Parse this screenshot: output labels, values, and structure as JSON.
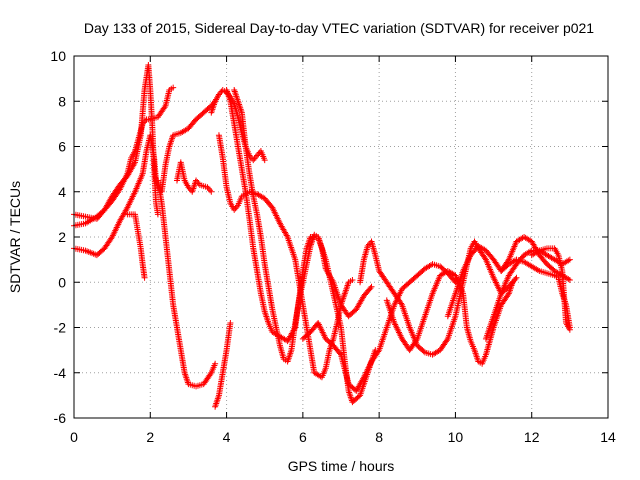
{
  "chart_data": {
    "type": "scatter",
    "title": "Day 133 of 2015, Sidereal Day-to-day VTEC variation (SDTVAR) for receiver p021",
    "xlabel": "GPS time / hours",
    "ylabel": "SDTVAR / TECUs",
    "xlim": [
      0,
      14
    ],
    "ylim": [
      -6,
      10
    ],
    "xticks": [
      0,
      2,
      4,
      6,
      8,
      10,
      12,
      14
    ],
    "yticks": [
      -6,
      -4,
      -2,
      0,
      2,
      4,
      6,
      8,
      10
    ],
    "grid": true,
    "legend": "none",
    "marker": "plus",
    "color": "#ff0000",
    "series": [
      {
        "points": [
          [
            0.0,
            3.0
          ],
          [
            0.3,
            2.9
          ],
          [
            0.6,
            2.8
          ],
          [
            0.8,
            3.2
          ],
          [
            1.0,
            3.8
          ],
          [
            1.2,
            4.3
          ],
          [
            1.4,
            4.7
          ],
          [
            1.6,
            5.3
          ],
          [
            1.75,
            6.5
          ],
          [
            1.85,
            8.5
          ],
          [
            1.95,
            9.6
          ],
          [
            2.0,
            8.5
          ],
          [
            2.05,
            7.0
          ],
          [
            2.1,
            5.0
          ],
          [
            2.15,
            3.5
          ],
          [
            2.2,
            3.0
          ]
        ]
      },
      {
        "points": [
          [
            0.0,
            2.5
          ],
          [
            0.3,
            2.6
          ],
          [
            0.6,
            2.9
          ],
          [
            0.8,
            3.2
          ],
          [
            1.0,
            3.6
          ],
          [
            1.2,
            4.1
          ],
          [
            1.4,
            4.8
          ],
          [
            1.5,
            5.5
          ],
          [
            1.6,
            5.8
          ],
          [
            1.7,
            6.4
          ],
          [
            1.8,
            7.0
          ],
          [
            1.9,
            7.2
          ],
          [
            2.0,
            7.2
          ],
          [
            2.2,
            7.3
          ],
          [
            2.4,
            7.8
          ],
          [
            2.5,
            8.5
          ],
          [
            2.6,
            8.6
          ]
        ]
      },
      {
        "points": [
          [
            0.0,
            1.5
          ],
          [
            0.3,
            1.4
          ],
          [
            0.6,
            1.2
          ],
          [
            0.8,
            1.5
          ],
          [
            1.0,
            2.0
          ],
          [
            1.2,
            2.7
          ],
          [
            1.4,
            3.3
          ],
          [
            1.6,
            4.0
          ],
          [
            1.8,
            4.8
          ],
          [
            1.9,
            5.8
          ],
          [
            2.0,
            6.5
          ],
          [
            2.1,
            5.5
          ],
          [
            2.15,
            4.5
          ],
          [
            2.2,
            4.2
          ],
          [
            2.3,
            4.0
          ],
          [
            2.4,
            5.2
          ],
          [
            2.5,
            6.0
          ],
          [
            2.6,
            6.5
          ],
          [
            2.8,
            6.6
          ],
          [
            3.0,
            6.8
          ],
          [
            3.2,
            7.2
          ],
          [
            3.4,
            7.5
          ],
          [
            3.6,
            7.8
          ],
          [
            3.7,
            8.0
          ]
        ]
      },
      {
        "points": [
          [
            1.4,
            3.0
          ],
          [
            1.5,
            3.0
          ],
          [
            1.6,
            3.0
          ],
          [
            1.65,
            2.5
          ],
          [
            1.7,
            2.0
          ],
          [
            1.75,
            1.5
          ],
          [
            1.8,
            0.8
          ],
          [
            1.85,
            0.2
          ]
        ]
      },
      {
        "points": [
          [
            2.2,
            4.5
          ],
          [
            2.3,
            3.5
          ],
          [
            2.4,
            2.0
          ],
          [
            2.5,
            0.5
          ],
          [
            2.6,
            -1.0
          ],
          [
            2.7,
            -2.0
          ],
          [
            2.8,
            -3.0
          ],
          [
            2.9,
            -4.0
          ],
          [
            3.0,
            -4.5
          ],
          [
            3.2,
            -4.6
          ],
          [
            3.4,
            -4.5
          ],
          [
            3.6,
            -4.0
          ],
          [
            3.7,
            -3.6
          ]
        ]
      },
      {
        "points": [
          [
            2.7,
            4.5
          ],
          [
            2.8,
            5.3
          ],
          [
            2.9,
            4.5
          ],
          [
            3.0,
            4.2
          ],
          [
            3.1,
            4.0
          ],
          [
            3.2,
            4.5
          ],
          [
            3.3,
            4.3
          ],
          [
            3.5,
            4.2
          ],
          [
            3.6,
            4.0
          ]
        ]
      },
      {
        "points": [
          [
            3.7,
            -5.5
          ],
          [
            3.8,
            -5.0
          ],
          [
            3.9,
            -4.0
          ],
          [
            4.0,
            -3.0
          ],
          [
            4.1,
            -1.8
          ]
        ]
      },
      {
        "points": [
          [
            3.6,
            7.5
          ],
          [
            3.7,
            8.0
          ],
          [
            3.8,
            8.3
          ],
          [
            3.9,
            8.5
          ],
          [
            4.0,
            8.4
          ],
          [
            4.1,
            8.2
          ],
          [
            4.2,
            7.9
          ],
          [
            4.3,
            7.3
          ],
          [
            4.4,
            6.6
          ],
          [
            4.5,
            6.0
          ],
          [
            4.6,
            5.6
          ],
          [
            4.7,
            5.4
          ],
          [
            4.8,
            5.6
          ],
          [
            4.9,
            5.8
          ],
          [
            5.0,
            5.4
          ]
        ]
      },
      {
        "points": [
          [
            3.8,
            6.5
          ],
          [
            3.9,
            5.5
          ],
          [
            4.0,
            4.2
          ],
          [
            4.1,
            3.5
          ],
          [
            4.2,
            3.2
          ],
          [
            4.3,
            3.4
          ],
          [
            4.4,
            3.8
          ],
          [
            4.5,
            3.9
          ],
          [
            4.6,
            4.0
          ],
          [
            4.8,
            3.9
          ],
          [
            5.0,
            3.7
          ],
          [
            5.2,
            3.3
          ],
          [
            5.4,
            2.6
          ],
          [
            5.6,
            2.0
          ],
          [
            5.8,
            1.0
          ],
          [
            5.9,
            0.0
          ],
          [
            6.0,
            -1.0
          ],
          [
            6.1,
            -2.0
          ],
          [
            6.2,
            -3.0
          ],
          [
            6.3,
            -4.0
          ],
          [
            6.5,
            -4.2
          ],
          [
            6.6,
            -3.8
          ],
          [
            6.7,
            -3.0
          ],
          [
            6.8,
            -2.5
          ],
          [
            6.9,
            -1.8
          ],
          [
            7.0,
            -1.0
          ],
          [
            7.1,
            -0.5
          ],
          [
            7.2,
            0.0
          ],
          [
            7.3,
            0.1
          ]
        ]
      },
      {
        "points": [
          [
            4.0,
            8.5
          ],
          [
            4.1,
            8.0
          ],
          [
            4.2,
            7.0
          ],
          [
            4.3,
            6.0
          ],
          [
            4.4,
            5.0
          ],
          [
            4.5,
            4.0
          ],
          [
            4.6,
            2.8
          ],
          [
            4.7,
            1.5
          ],
          [
            4.8,
            0.5
          ],
          [
            4.9,
            -0.5
          ],
          [
            5.0,
            -1.3
          ],
          [
            5.1,
            -1.8
          ],
          [
            5.2,
            -2.2
          ],
          [
            5.4,
            -2.4
          ],
          [
            5.6,
            -2.6
          ],
          [
            5.8,
            -2.0
          ],
          [
            6.0,
            0.5
          ],
          [
            6.1,
            1.5
          ],
          [
            6.2,
            2.0
          ],
          [
            6.4,
            2.0
          ],
          [
            6.6,
            1.0
          ],
          [
            6.8,
            -0.5
          ],
          [
            7.0,
            -2.0
          ],
          [
            7.1,
            -3.5
          ],
          [
            7.2,
            -4.8
          ],
          [
            7.3,
            -5.3
          ],
          [
            7.5,
            -5.0
          ],
          [
            7.7,
            -4.0
          ],
          [
            7.9,
            -3.0
          ]
        ]
      },
      {
        "points": [
          [
            4.2,
            8.5
          ],
          [
            4.3,
            8.0
          ],
          [
            4.4,
            7.5
          ],
          [
            4.5,
            6.0
          ],
          [
            4.6,
            4.8
          ],
          [
            4.7,
            3.8
          ],
          [
            4.8,
            3.0
          ],
          [
            4.9,
            2.0
          ],
          [
            5.0,
            0.8
          ],
          [
            5.1,
            -0.2
          ],
          [
            5.2,
            -1.2
          ],
          [
            5.3,
            -2.0
          ],
          [
            5.4,
            -2.8
          ],
          [
            5.5,
            -3.4
          ],
          [
            5.6,
            -3.5
          ],
          [
            5.7,
            -3.0
          ],
          [
            5.8,
            -1.8
          ],
          [
            5.9,
            -0.8
          ],
          [
            6.0,
            0.0
          ],
          [
            6.1,
            0.8
          ],
          [
            6.2,
            1.6
          ],
          [
            6.3,
            2.1
          ],
          [
            6.4,
            2.0
          ],
          [
            6.5,
            1.5
          ],
          [
            6.6,
            0.6
          ],
          [
            6.8,
            0.0
          ],
          [
            7.0,
            -1.0
          ],
          [
            7.2,
            -1.5
          ],
          [
            7.4,
            -1.2
          ],
          [
            7.6,
            -0.6
          ],
          [
            7.8,
            -0.2
          ]
        ]
      },
      {
        "points": [
          [
            6.0,
            -2.5
          ],
          [
            6.2,
            -2.2
          ],
          [
            6.4,
            -1.8
          ],
          [
            6.6,
            -2.5
          ],
          [
            6.8,
            -2.8
          ],
          [
            7.0,
            -3.2
          ],
          [
            7.2,
            -4.5
          ],
          [
            7.4,
            -4.8
          ],
          [
            7.6,
            -4.2
          ],
          [
            7.8,
            -3.5
          ],
          [
            8.0,
            -3.0
          ],
          [
            8.2,
            -2.0
          ],
          [
            8.4,
            -1.0
          ],
          [
            8.6,
            -0.3
          ],
          [
            8.8,
            0.0
          ],
          [
            9.0,
            0.3
          ],
          [
            9.2,
            0.6
          ],
          [
            9.4,
            0.8
          ],
          [
            9.6,
            0.7
          ],
          [
            9.8,
            0.4
          ],
          [
            10.0,
            0.0
          ]
        ]
      },
      {
        "points": [
          [
            7.5,
            0.0
          ],
          [
            7.6,
            1.0
          ],
          [
            7.7,
            1.6
          ],
          [
            7.8,
            1.8
          ],
          [
            7.9,
            1.2
          ],
          [
            8.0,
            0.5
          ],
          [
            8.2,
            0.0
          ],
          [
            8.4,
            -0.5
          ],
          [
            8.6,
            -1.0
          ],
          [
            8.8,
            -2.0
          ],
          [
            9.0,
            -2.8
          ],
          [
            9.2,
            -3.1
          ],
          [
            9.4,
            -3.2
          ],
          [
            9.6,
            -3.0
          ],
          [
            9.8,
            -2.5
          ],
          [
            10.0,
            -1.5
          ],
          [
            10.2,
            0.0
          ],
          [
            10.4,
            1.5
          ],
          [
            10.5,
            1.8
          ],
          [
            10.6,
            1.5
          ],
          [
            10.8,
            1.0
          ],
          [
            11.0,
            0.2
          ],
          [
            11.2,
            -0.5
          ],
          [
            11.4,
            -0.2
          ],
          [
            11.6,
            0.2
          ]
        ]
      },
      {
        "points": [
          [
            8.2,
            -0.8
          ],
          [
            8.4,
            -1.8
          ],
          [
            8.6,
            -2.5
          ],
          [
            8.8,
            -3.0
          ],
          [
            9.0,
            -2.5
          ],
          [
            9.2,
            -1.5
          ],
          [
            9.4,
            -0.5
          ],
          [
            9.6,
            0.3
          ],
          [
            9.8,
            0.5
          ],
          [
            10.0,
            0.3
          ],
          [
            10.2,
            -0.5
          ],
          [
            10.3,
            -2.0
          ],
          [
            10.4,
            -2.6
          ],
          [
            10.5,
            -3.0
          ],
          [
            10.6,
            -3.5
          ],
          [
            10.7,
            -3.6
          ],
          [
            10.8,
            -3.2
          ],
          [
            11.0,
            -2.0
          ],
          [
            11.2,
            -1.0
          ],
          [
            11.4,
            -0.5
          ],
          [
            11.5,
            0.0
          ]
        ]
      },
      {
        "points": [
          [
            9.8,
            -1.5
          ],
          [
            10.0,
            -0.5
          ],
          [
            10.2,
            0.5
          ],
          [
            10.4,
            1.2
          ],
          [
            10.6,
            1.6
          ],
          [
            10.8,
            1.4
          ],
          [
            11.0,
            1.0
          ],
          [
            11.2,
            0.5
          ],
          [
            11.4,
            1.0
          ],
          [
            11.6,
            1.8
          ],
          [
            11.8,
            2.0
          ],
          [
            12.0,
            1.8
          ],
          [
            12.2,
            1.2
          ],
          [
            12.4,
            0.8
          ],
          [
            12.6,
            0.5
          ],
          [
            12.8,
            0.3
          ],
          [
            13.0,
            0.1
          ]
        ]
      },
      {
        "points": [
          [
            10.8,
            -2.5
          ],
          [
            11.0,
            -1.5
          ],
          [
            11.2,
            -0.5
          ],
          [
            11.4,
            0.3
          ],
          [
            11.6,
            0.8
          ],
          [
            11.8,
            1.2
          ],
          [
            12.0,
            1.4
          ],
          [
            12.2,
            1.4
          ],
          [
            12.4,
            1.2
          ],
          [
            12.6,
            1.0
          ],
          [
            12.8,
            0.8
          ],
          [
            13.0,
            1.0
          ]
        ]
      },
      {
        "points": [
          [
            11.2,
            0.5
          ],
          [
            11.4,
            0.8
          ],
          [
            11.6,
            1.0
          ],
          [
            11.8,
            0.9
          ],
          [
            12.0,
            0.7
          ],
          [
            12.2,
            0.5
          ],
          [
            12.4,
            0.4
          ],
          [
            12.6,
            0.3
          ],
          [
            12.7,
            0.2
          ],
          [
            12.8,
            -0.5
          ],
          [
            12.9,
            -1.0
          ],
          [
            13.0,
            -2.0
          ]
        ]
      },
      {
        "points": [
          [
            12.0,
            1.2
          ],
          [
            12.2,
            1.4
          ],
          [
            12.4,
            1.5
          ],
          [
            12.6,
            1.5
          ],
          [
            12.7,
            1.2
          ],
          [
            12.8,
            0.5
          ],
          [
            12.9,
            -1.8
          ],
          [
            13.0,
            -2.1
          ]
        ]
      }
    ]
  }
}
